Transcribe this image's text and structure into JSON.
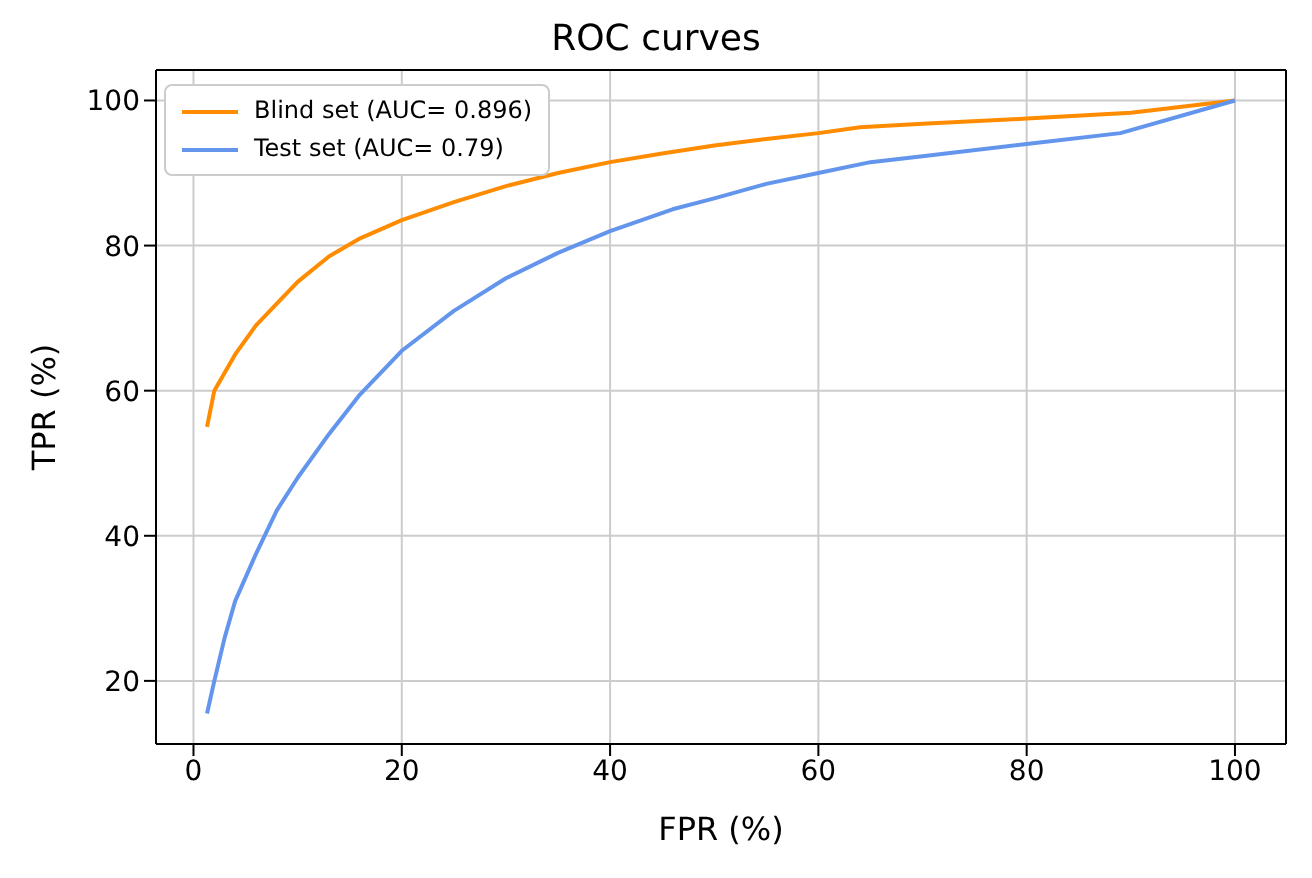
{
  "chart_data": {
    "type": "line",
    "title": "ROC curves",
    "xlabel": "FPR (%)",
    "ylabel": "TPR (%)",
    "xlim": [
      -3.6,
      104.9
    ],
    "ylim": [
      11.3,
      104.2
    ],
    "xticks": [
      0,
      20,
      40,
      60,
      80,
      100
    ],
    "yticks": [
      20,
      40,
      60,
      80,
      100
    ],
    "grid": true,
    "legend": "top left",
    "marker": "none",
    "line_style": "solid",
    "series": [
      {
        "name": "Blind set (AUC= 0.896)",
        "color": "#ff8c00",
        "x": [
          1.3,
          2,
          4,
          6,
          8,
          10,
          13,
          16,
          20,
          25,
          30,
          35,
          40,
          45,
          50,
          55,
          60,
          64,
          70,
          80,
          90,
          100
        ],
        "values": [
          55,
          60,
          65,
          69,
          72,
          75,
          78.5,
          81,
          83.5,
          86,
          88.2,
          90,
          91.5,
          92.7,
          93.8,
          94.7,
          95.5,
          96.3,
          96.8,
          97.5,
          98.3,
          100
        ]
      },
      {
        "name": "Test set (AUC= 0.79)",
        "color": "#6495ed",
        "x": [
          1.3,
          2,
          3,
          4,
          6,
          8,
          10,
          13,
          16,
          20,
          25,
          30,
          35,
          40,
          46,
          50,
          55,
          60,
          65,
          70,
          80,
          89,
          100
        ],
        "values": [
          15.5,
          20,
          26,
          31,
          37.5,
          43.5,
          48,
          54,
          59.5,
          65.5,
          71,
          75.5,
          79,
          82,
          85,
          86.5,
          88.5,
          90,
          91.5,
          92.3,
          94,
          95.5,
          100
        ]
      }
    ]
  }
}
